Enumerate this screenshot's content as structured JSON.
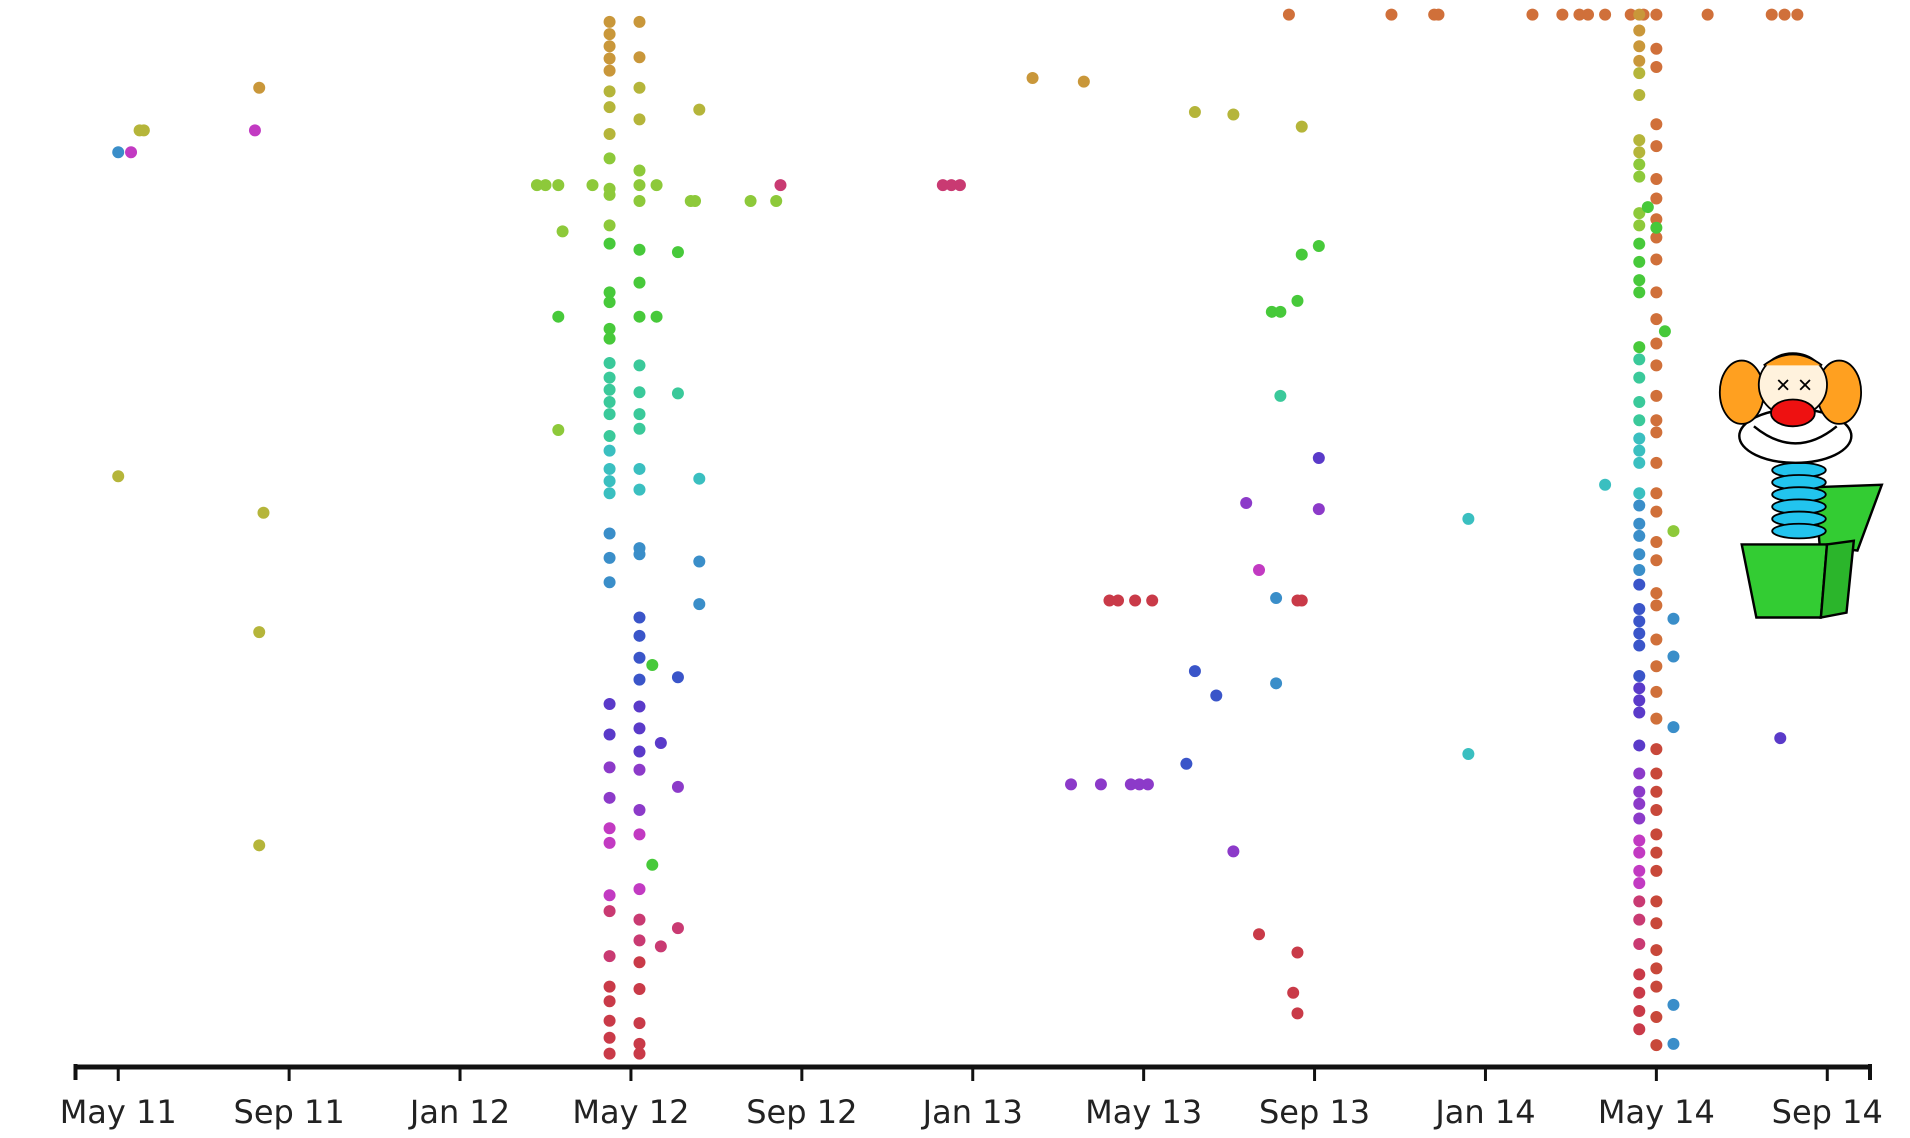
{
  "chart_data": {
    "type": "scatter",
    "x": [
      15.5,
      15.5,
      15.5,
      15.5,
      15.5,
      15.5,
      15.5,
      15.5,
      15.5,
      15.5,
      15.5,
      15.5,
      15.5,
      15.5,
      15.5,
      15.5,
      15.5,
      15.5,
      15.5,
      15.5,
      15.5,
      15.5,
      15.5,
      15.5,
      15.5,
      15.5,
      15.5,
      15.5,
      15.5,
      15.5,
      15.5,
      15.5,
      15.5,
      15.5,
      15.5,
      15.5,
      15.5,
      15.5,
      15.5,
      15.5,
      15.5,
      15.5,
      15.5,
      15.5,
      16.2,
      16.2,
      16.2,
      16.2,
      16.2,
      16.2,
      16.2,
      16.2,
      16.2,
      16.2,
      16.2,
      16.2,
      16.2,
      16.2,
      16.2,
      16.2,
      16.2,
      16.2,
      16.2,
      16.2,
      16.2,
      16.2,
      16.2,
      16.2,
      16.2,
      16.2,
      16.2,
      16.2,
      16.2,
      16.2,
      16.2,
      16.2,
      16.2,
      16.2,
      16.2,
      16.2,
      13.8,
      14.0,
      14.3,
      15.1,
      16.6,
      17.4,
      17.5,
      18.8,
      19.4,
      19.5,
      14.4,
      14.3,
      14.3,
      17.1,
      16.6,
      17.1,
      17.6,
      17.6,
      17.6,
      17.6,
      17.1,
      16.5,
      16.7,
      17.1,
      16.5,
      17.1,
      16.7,
      4.0,
      4.3,
      4.5,
      4.6,
      7.3,
      7.2,
      4.0,
      7.4,
      7.3,
      7.3,
      23.3,
      23.5,
      23.7,
      25.4,
      26.6,
      29.2,
      30.1,
      31.7,
      31.4,
      33.8,
      34.8,
      34.9,
      37.1,
      37.8,
      38.2,
      38.4,
      38.8,
      39.4,
      39.7,
      41.2,
      42.7,
      43.0,
      43.3,
      32.1,
      31.7,
      31.0,
      31.2,
      31.6,
      31.2,
      32.1,
      32.1,
      30.4,
      30.7,
      31.1,
      31.6,
      31.7,
      27.2,
      27.4,
      27.8,
      28.2,
      29.2,
      29.7,
      31.1,
      29.0,
      26.3,
      27.0,
      27.7,
      27.9,
      28.1,
      30.1,
      30.7,
      31.6,
      31.5,
      31.6,
      35.6,
      35.6,
      38.8,
      42.9,
      39.6,
      39.6,
      39.6,
      39.6,
      39.6,
      39.6,
      39.6,
      39.6,
      39.6,
      39.6,
      39.6,
      39.6,
      39.6,
      39.6,
      39.6,
      39.6,
      39.6,
      39.6,
      39.6,
      39.6,
      39.6,
      39.6,
      39.6,
      39.6,
      39.6,
      39.6,
      39.6,
      39.6,
      39.6,
      39.6,
      39.6,
      39.6,
      39.6,
      39.6,
      39.6,
      39.6,
      39.6,
      39.6,
      39.6,
      39.6,
      39.6,
      39.6,
      39.6,
      39.6,
      39.6,
      39.6,
      39.6,
      39.6,
      39.6,
      39.6,
      39.6,
      39.6,
      39.6,
      39.6,
      39.6,
      40.0,
      40.0,
      40.0,
      40.0,
      40.0,
      40.0,
      40.0,
      40.0,
      40.0,
      40.0,
      40.0,
      40.0,
      40.0,
      40.0,
      40.0,
      40.0,
      40.0,
      40.0,
      40.0,
      40.0,
      40.0,
      40.0,
      40.0,
      40.0,
      40.0,
      40.0,
      40.0,
      40.0,
      40.0,
      40.0,
      40.0,
      40.0,
      40.0,
      40.0,
      40.0,
      40.0,
      40.0,
      40.0,
      40.0,
      40.0,
      40.0,
      40.0,
      40.2,
      40.4,
      40.4,
      40.4,
      40.4,
      40.4,
      40.4,
      40.0,
      39.8
    ],
    "values": [
      18,
      28,
      38,
      48,
      58,
      75,
      88,
      110,
      130,
      155,
      160,
      185,
      200,
      240,
      248,
      270,
      278,
      298,
      310,
      320,
      330,
      340,
      358,
      370,
      385,
      395,
      405,
      438,
      458,
      478,
      578,
      603,
      630,
      655,
      680,
      692,
      735,
      748,
      785,
      810,
      822,
      838,
      852,
      865,
      18,
      47,
      72,
      98,
      140,
      152,
      165,
      205,
      232,
      260,
      300,
      322,
      340,
      352,
      385,
      402,
      450,
      455,
      507,
      522,
      540,
      558,
      580,
      598,
      617,
      632,
      665,
      685,
      730,
      755,
      772,
      790,
      812,
      840,
      857,
      865,
      152,
      152,
      152,
      152,
      152,
      165,
      165,
      165,
      165,
      152,
      190,
      260,
      353,
      207,
      260,
      323,
      90,
      393,
      461,
      496,
      556,
      546,
      610,
      646,
      710,
      762,
      777,
      125,
      125,
      107,
      107,
      72,
      107,
      391,
      421,
      519,
      694,
      152,
      152,
      152,
      64,
      67,
      92,
      94,
      104,
      12,
      12,
      12,
      12,
      12,
      12,
      12,
      12,
      12,
      12,
      12,
      12,
      12,
      12,
      12,
      202,
      209,
      256,
      256,
      247,
      325,
      376,
      418,
      413,
      468,
      491,
      493,
      493,
      493,
      493,
      493,
      493,
      551,
      571,
      561,
      627,
      644,
      644,
      644,
      644,
      644,
      699,
      767,
      782,
      815,
      832,
      426,
      619,
      398,
      606,
      12,
      25,
      38,
      50,
      60,
      78,
      115,
      125,
      135,
      145,
      175,
      185,
      200,
      215,
      230,
      240,
      285,
      295,
      310,
      330,
      345,
      360,
      370,
      380,
      405,
      415,
      430,
      440,
      455,
      468,
      480,
      500,
      510,
      520,
      530,
      555,
      565,
      575,
      585,
      612,
      635,
      650,
      660,
      672,
      690,
      700,
      715,
      725,
      740,
      755,
      775,
      800,
      815,
      830,
      845,
      12,
      40,
      55,
      102,
      120,
      147,
      163,
      180,
      195,
      213,
      240,
      262,
      282,
      300,
      325,
      345,
      355,
      380,
      405,
      420,
      445,
      460,
      487,
      497,
      525,
      547,
      568,
      590,
      615,
      635,
      650,
      665,
      685,
      700,
      715,
      740,
      758,
      780,
      795,
      810,
      835,
      858,
      272,
      436,
      508,
      539,
      597,
      825,
      857,
      187,
      170
    ],
    "colors": [
      "#c9973a",
      "#c9973a",
      "#c9973a",
      "#c9973a",
      "#c9973a",
      "#b5b53a",
      "#b5b53a",
      "#b5b53a",
      "#8dc93a",
      "#8dc93a",
      "#8dc93a",
      "#8dc93a",
      "#47c93a",
      "#47c93a",
      "#47c93a",
      "#47c93a",
      "#47c93a",
      "#3ac99a",
      "#3ac99a",
      "#3ac99a",
      "#3ac99a",
      "#3ac99a",
      "#3ac99a",
      "#3abfc0",
      "#3abfc0",
      "#3abfc0",
      "#3abfc0",
      "#3a8ec9",
      "#3a8ec9",
      "#3a8ec9",
      "#5a3ac9",
      "#5a3ac9",
      "#8c3ac9",
      "#8c3ac9",
      "#c23ac2",
      "#c23ac2",
      "#c23ac2",
      "#c93a72",
      "#c93a72",
      "#c93a48",
      "#c93a48",
      "#c93a48",
      "#c93a48",
      "#c93a48",
      "#c9973a",
      "#c9973a",
      "#b5b53a",
      "#b5b53a",
      "#8dc93a",
      "#8dc93a",
      "#8dc93a",
      "#47c93a",
      "#47c93a",
      "#47c93a",
      "#3ac99a",
      "#3ac99a",
      "#3ac99a",
      "#3ac99a",
      "#3abfc0",
      "#3abfc0",
      "#3a8ec9",
      "#3a8ec9",
      "#3a55c9",
      "#3a55c9",
      "#3a55c9",
      "#3a55c9",
      "#5a3ac9",
      "#5a3ac9",
      "#5a3ac9",
      "#8c3ac9",
      "#8c3ac9",
      "#c23ac2",
      "#c23ac2",
      "#c93a72",
      "#c93a72",
      "#c93a48",
      "#c93a48",
      "#c93a48",
      "#c93a48",
      "#c93a48",
      "#8dc93a",
      "#8dc93a",
      "#8dc93a",
      "#8dc93a",
      "#8dc93a",
      "#8dc93a",
      "#8dc93a",
      "#8dc93a",
      "#8dc93a",
      "#c93a72",
      "#8dc93a",
      "#47c93a",
      "#8dc93a",
      "#47c93a",
      "#47c93a",
      "#3ac99a",
      "#b5b53a",
      "#3abfc0",
      "#3a8ec9",
      "#3a8ec9",
      "#3a55c9",
      "#47c93a",
      "#5a3ac9",
      "#8c3ac9",
      "#47c93a",
      "#c93a72",
      "#c93a72",
      "#3a8ec9",
      "#c23ac2",
      "#b5b53a",
      "#b5b53a",
      "#c9973a",
      "#c23ac2",
      "#b5b53a",
      "#b5b53a",
      "#b5b53a",
      "#b5b53a",
      "#c93a72",
      "#c93a72",
      "#c93a72",
      "#c9973a",
      "#c9973a",
      "#b5b53a",
      "#b5b53a",
      "#b5b53a",
      "#d0703a",
      "#d0703a",
      "#d0703a",
      "#d0703a",
      "#d0703a",
      "#d0703a",
      "#d0703a",
      "#d0703a",
      "#d0703a",
      "#d0703a",
      "#d0703a",
      "#d0703a",
      "#d0703a",
      "#d0703a",
      "#d0703a",
      "#47c93a",
      "#47c93a",
      "#47c93a",
      "#47c93a",
      "#47c93a",
      "#3ac99a",
      "#5a3ac9",
      "#8c3ac9",
      "#8c3ac9",
      "#c23ac2",
      "#3a8ec9",
      "#c93a48",
      "#c93a48",
      "#c93a48",
      "#c93a48",
      "#c93a48",
      "#c93a48",
      "#3a55c9",
      "#3a55c9",
      "#3a8ec9",
      "#3a55c9",
      "#8c3ac9",
      "#8c3ac9",
      "#8c3ac9",
      "#8c3ac9",
      "#8c3ac9",
      "#8c3ac9",
      "#c93a48",
      "#c93a48",
      "#c93a48",
      "#c93a48",
      "#3abfc0",
      "#3abfc0",
      "#3abfc0",
      "#5a3ac9",
      "#c9973a",
      "#c9973a",
      "#c9973a",
      "#c9973a",
      "#b5b53a",
      "#b5b53a",
      "#b5b53a",
      "#b5b53a",
      "#8dc93a",
      "#8dc93a",
      "#8dc93a",
      "#8dc93a",
      "#47c93a",
      "#47c93a",
      "#47c93a",
      "#47c93a",
      "#47c93a",
      "#3ac99a",
      "#3ac99a",
      "#3ac99a",
      "#3ac99a",
      "#3abfc0",
      "#3abfc0",
      "#3abfc0",
      "#3abfc0",
      "#3a8ec9",
      "#3a8ec9",
      "#3a8ec9",
      "#3a8ec9",
      "#3a8ec9",
      "#3a55c9",
      "#3a55c9",
      "#3a55c9",
      "#3a55c9",
      "#3a55c9",
      "#3a55c9",
      "#5a3ac9",
      "#5a3ac9",
      "#5a3ac9",
      "#5a3ac9",
      "#8c3ac9",
      "#8c3ac9",
      "#8c3ac9",
      "#8c3ac9",
      "#c23ac2",
      "#c23ac2",
      "#c23ac2",
      "#c23ac2",
      "#c93a72",
      "#c93a72",
      "#c93a72",
      "#c93a48",
      "#c93a48",
      "#c93a48",
      "#c93a48",
      "#d0703a",
      "#d0703a",
      "#d0703a",
      "#d0703a",
      "#d0703a",
      "#d0703a",
      "#d0703a",
      "#d0703a",
      "#d0703a",
      "#d0703a",
      "#d0703a",
      "#d0703a",
      "#d0703a",
      "#d0703a",
      "#d0703a",
      "#d0703a",
      "#d0703a",
      "#d0703a",
      "#d0703a",
      "#d0703a",
      "#d0703a",
      "#d0703a",
      "#d0703a",
      "#d0703a",
      "#d0703a",
      "#d0703a",
      "#d0703a",
      "#d0703a",
      "#c8483a",
      "#c8483a",
      "#c8483a",
      "#c8483a",
      "#c8483a",
      "#c8483a",
      "#c8483a",
      "#c8483a",
      "#c8483a",
      "#c8483a",
      "#c8483a",
      "#c8483a",
      "#c8483a",
      "#c8483a",
      "#47c93a",
      "#8dc93a",
      "#3a8ec9",
      "#3a8ec9",
      "#3a8ec9",
      "#3a8ec9",
      "#3a8ec9",
      "#47c93a",
      "#47c93a"
    ],
    "xlim": [
      3,
      45
    ],
    "xticks": [
      {
        "value": 4,
        "label": "May 11"
      },
      {
        "value": 8,
        "label": "Sep 11"
      },
      {
        "value": 12,
        "label": "Jan 12"
      },
      {
        "value": 16,
        "label": "May 12"
      },
      {
        "value": 20,
        "label": "Sep 12"
      },
      {
        "value": 24,
        "label": "Jan 13"
      },
      {
        "value": 28,
        "label": "May 13"
      },
      {
        "value": 32,
        "label": "Sep 13"
      },
      {
        "value": 36,
        "label": "Jan 14"
      },
      {
        "value": 40,
        "label": "May 14"
      },
      {
        "value": 44,
        "label": "Sep 14"
      }
    ],
    "ylim": [
      876,
      0
    ]
  }
}
